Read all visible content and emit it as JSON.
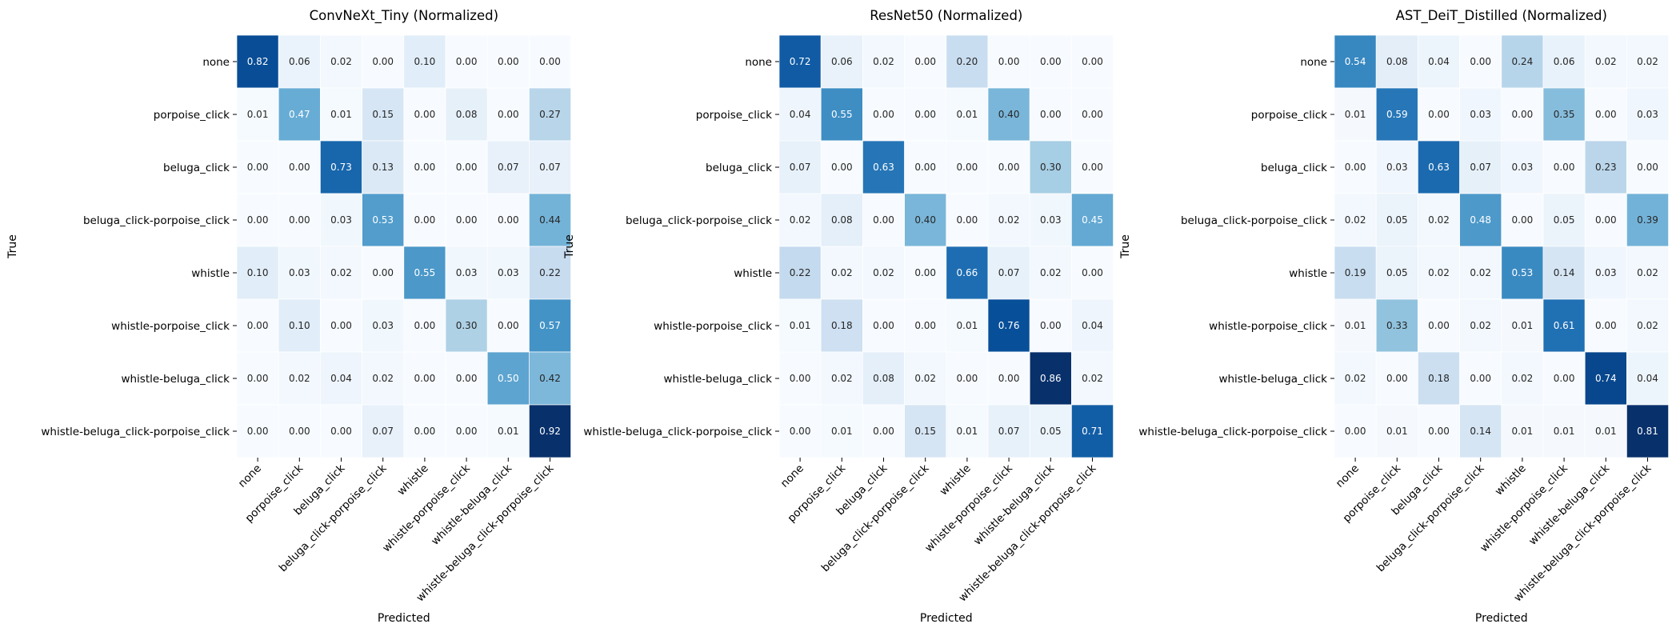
{
  "chart_data": [
    {
      "type": "heatmap",
      "title": "ConvNeXt_Tiny (Normalized)",
      "xlabel": "Predicted",
      "ylabel": "True",
      "categories": [
        "none",
        "porpoise_click",
        "beluga_click",
        "beluga_click-porpoise_click",
        "whistle",
        "whistle-porpoise_click",
        "whistle-beluga_click",
        "whistle-beluga_click-porpoise_click"
      ],
      "values": [
        [
          "0.82",
          "0.06",
          "0.02",
          "0.00",
          "0.10",
          "0.00",
          "0.00",
          "0.00"
        ],
        [
          "0.01",
          "0.47",
          "0.01",
          "0.15",
          "0.00",
          "0.08",
          "0.00",
          "0.27"
        ],
        [
          "0.00",
          "0.00",
          "0.73",
          "0.13",
          "0.00",
          "0.00",
          "0.07",
          "0.07"
        ],
        [
          "0.00",
          "0.00",
          "0.03",
          "0.53",
          "0.00",
          "0.00",
          "0.00",
          "0.44"
        ],
        [
          "0.10",
          "0.03",
          "0.02",
          "0.00",
          "0.55",
          "0.03",
          "0.03",
          "0.22"
        ],
        [
          "0.00",
          "0.10",
          "0.00",
          "0.03",
          "0.00",
          "0.30",
          "0.00",
          "0.57"
        ],
        [
          "0.00",
          "0.02",
          "0.04",
          "0.02",
          "0.00",
          "0.00",
          "0.50",
          "0.42"
        ],
        [
          "0.00",
          "0.00",
          "0.00",
          "0.07",
          "0.00",
          "0.00",
          "0.01",
          "0.92"
        ]
      ]
    },
    {
      "type": "heatmap",
      "title": "ResNet50 (Normalized)",
      "xlabel": "Predicted",
      "ylabel": "True",
      "categories": [
        "none",
        "porpoise_click",
        "beluga_click",
        "beluga_click-porpoise_click",
        "whistle",
        "whistle-porpoise_click",
        "whistle-beluga_click",
        "whistle-beluga_click-porpoise_click"
      ],
      "values": [
        [
          "0.72",
          "0.06",
          "0.02",
          "0.00",
          "0.20",
          "0.00",
          "0.00",
          "0.00"
        ],
        [
          "0.04",
          "0.55",
          "0.00",
          "0.00",
          "0.01",
          "0.40",
          "0.00",
          "0.00"
        ],
        [
          "0.07",
          "0.00",
          "0.63",
          "0.00",
          "0.00",
          "0.00",
          "0.30",
          "0.00"
        ],
        [
          "0.02",
          "0.08",
          "0.00",
          "0.40",
          "0.00",
          "0.02",
          "0.03",
          "0.45"
        ],
        [
          "0.22",
          "0.02",
          "0.02",
          "0.00",
          "0.66",
          "0.07",
          "0.02",
          "0.00"
        ],
        [
          "0.01",
          "0.18",
          "0.00",
          "0.00",
          "0.01",
          "0.76",
          "0.00",
          "0.04"
        ],
        [
          "0.00",
          "0.02",
          "0.08",
          "0.02",
          "0.00",
          "0.00",
          "0.86",
          "0.02"
        ],
        [
          "0.00",
          "0.01",
          "0.00",
          "0.15",
          "0.01",
          "0.07",
          "0.05",
          "0.71"
        ]
      ]
    },
    {
      "type": "heatmap",
      "title": "AST_DeiT_Distilled (Normalized)",
      "xlabel": "Predicted",
      "ylabel": "True",
      "categories": [
        "none",
        "porpoise_click",
        "beluga_click",
        "beluga_click-porpoise_click",
        "whistle",
        "whistle-porpoise_click",
        "whistle-beluga_click",
        "whistle-beluga_click-porpoise_click"
      ],
      "values": [
        [
          "0.54",
          "0.08",
          "0.04",
          "0.00",
          "0.24",
          "0.06",
          "0.02",
          "0.02"
        ],
        [
          "0.01",
          "0.59",
          "0.00",
          "0.03",
          "0.00",
          "0.35",
          "0.00",
          "0.03"
        ],
        [
          "0.00",
          "0.03",
          "0.63",
          "0.07",
          "0.03",
          "0.00",
          "0.23",
          "0.00"
        ],
        [
          "0.02",
          "0.05",
          "0.02",
          "0.48",
          "0.00",
          "0.05",
          "0.00",
          "0.39"
        ],
        [
          "0.19",
          "0.05",
          "0.02",
          "0.02",
          "0.53",
          "0.14",
          "0.03",
          "0.02"
        ],
        [
          "0.01",
          "0.33",
          "0.00",
          "0.02",
          "0.01",
          "0.61",
          "0.00",
          "0.02"
        ],
        [
          "0.02",
          "0.00",
          "0.18",
          "0.00",
          "0.02",
          "0.00",
          "0.74",
          "0.04"
        ],
        [
          "0.00",
          "0.01",
          "0.00",
          "0.14",
          "0.01",
          "0.01",
          "0.01",
          "0.81"
        ]
      ]
    }
  ]
}
